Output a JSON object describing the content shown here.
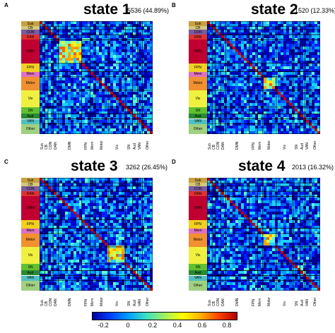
{
  "panels": [
    {
      "letter": "A",
      "title": "state 1",
      "count": "5536 (44.89%)",
      "seed": 11,
      "highlight": "DMN"
    },
    {
      "letter": "B",
      "title": "state 2",
      "count": "1520 (12.33%)",
      "seed": 23,
      "highlight": "Motor"
    },
    {
      "letter": "C",
      "title": "state 3",
      "count": "3262 (26.45%)",
      "seed": 37,
      "highlight": "Vis"
    },
    {
      "letter": "D",
      "title": "state 4",
      "count": "2013 (16.32%)",
      "seed": 51,
      "highlight": "Motor"
    }
  ],
  "networks": [
    {
      "name": "Sub",
      "color": "#c8a040",
      "size": 3
    },
    {
      "name": "CB",
      "color": "#d4c87a",
      "size": 2
    },
    {
      "name": "CON",
      "color": "#7a5aa0",
      "size": 3
    },
    {
      "name": "DAN",
      "color": "#e03030",
      "size": 3
    },
    {
      "name": "DMN",
      "color": "#c00030",
      "size": 14
    },
    {
      "name": "FPN",
      "color": "#f0d020",
      "size": 5
    },
    {
      "name": "Mem",
      "color": "#e070c0",
      "size": 3
    },
    {
      "name": "Motor",
      "color": "#f09030",
      "size": 8
    },
    {
      "name": "Vis",
      "color": "#f0f040",
      "size": 10
    },
    {
      "name": "SN",
      "color": "#60c030",
      "size": 4
    },
    {
      "name": "Aud",
      "color": "#2a8a30",
      "size": 3
    },
    {
      "name": "VAN",
      "color": "#50c0c0",
      "size": 3
    },
    {
      "name": "Other",
      "color": "#a0d080",
      "size": 6
    }
  ],
  "colorbar": {
    "ticks": [
      "-0.2",
      "0",
      "0.2",
      "0.4",
      "0.6",
      "0.8"
    ]
  }
}
